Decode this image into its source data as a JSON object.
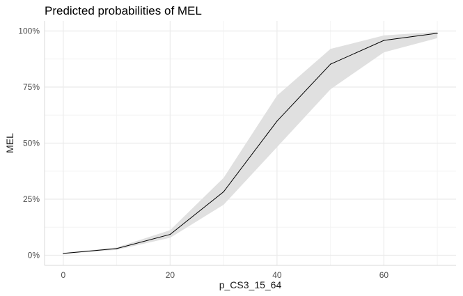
{
  "chart_data": {
    "type": "line",
    "title": "Predicted probabilities of MEL",
    "xlabel": "p_CS3_15_64",
    "ylabel": "MEL",
    "xlim": [
      -3.5,
      73.5
    ],
    "ylim": [
      -0.045,
      1.045
    ],
    "x_ticks": [
      0,
      20,
      40,
      60
    ],
    "x_tick_labels": [
      "0",
      "20",
      "40",
      "60"
    ],
    "y_ticks": [
      0,
      0.25,
      0.5,
      0.75,
      1.0
    ],
    "y_tick_labels": [
      "0%",
      "25%",
      "50%",
      "75%",
      "100%"
    ],
    "grid": true,
    "series": [
      {
        "x": [
          0,
          10,
          20,
          30,
          40,
          50,
          60,
          70
        ],
        "y": [
          0.008,
          0.03,
          0.093,
          0.283,
          0.598,
          0.852,
          0.958,
          0.99
        ],
        "lower": [
          0.006,
          0.024,
          0.078,
          0.225,
          0.482,
          0.74,
          0.905,
          0.968
        ],
        "upper": [
          0.011,
          0.035,
          0.112,
          0.345,
          0.712,
          0.92,
          0.98,
          0.996
        ]
      }
    ],
    "colors": {
      "line": "#000000",
      "ribbon": "#e0e0e0",
      "grid_major": "#ebebeb",
      "grid_minor": "#f4f4f4"
    }
  }
}
